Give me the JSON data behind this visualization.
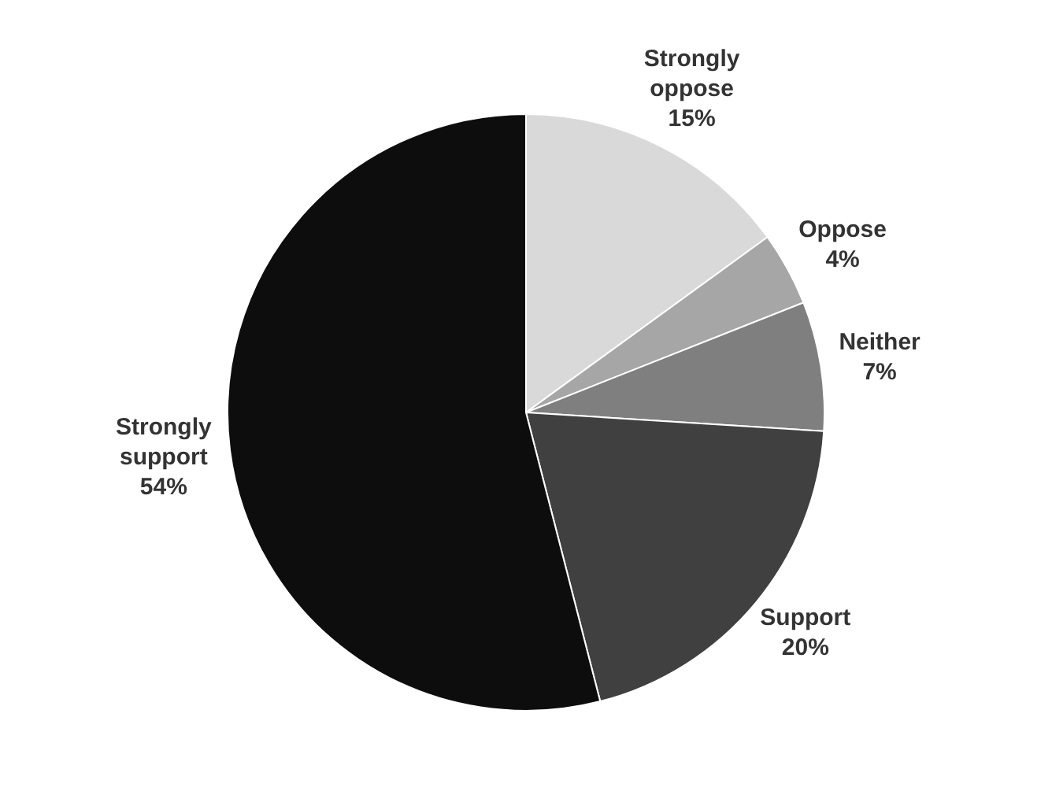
{
  "chart_data": {
    "type": "pie",
    "categories": [
      "Strongly oppose",
      "Oppose",
      "Neither",
      "Support",
      "Strongly support"
    ],
    "values": [
      15,
      4,
      7,
      20,
      54
    ],
    "value_labels": [
      "15%",
      "4%",
      "7%",
      "20%",
      "54%"
    ],
    "colors": [
      "#d9d9d9",
      "#a6a6a6",
      "#7f7f7f",
      "#404040",
      "#0d0d0d"
    ],
    "legend": false
  }
}
